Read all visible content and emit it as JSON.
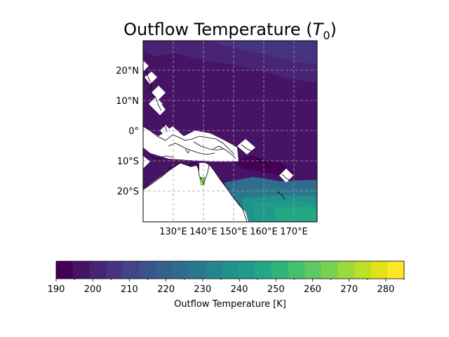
{
  "title": {
    "main": "Outflow Temperature (",
    "symbol": "T",
    "subscript": "0",
    "close": ")"
  },
  "map": {
    "lat_ticks": [
      "20°N",
      "10°N",
      "0°",
      "10°S",
      "20°S"
    ],
    "lon_ticks": [
      "130°E",
      "140°E",
      "150°E",
      "160°E",
      "170°E"
    ],
    "gridlines": true
  },
  "colorbar": {
    "label": "Outflow Temperature [K]",
    "ticks": [
      "190",
      "200",
      "210",
      "220",
      "230",
      "240",
      "250",
      "260",
      "270",
      "280"
    ],
    "colors": [
      "#440154",
      "#471365",
      "#482475",
      "#463480",
      "#414487",
      "#3b528b",
      "#355f8d",
      "#2f6c8e",
      "#2a788e",
      "#25848e",
      "#21918c",
      "#1e9c89",
      "#22a884",
      "#2fb47c",
      "#44bf70",
      "#5ec962",
      "#7ad151",
      "#9bd93c",
      "#bddf26",
      "#dfe318",
      "#fde725"
    ]
  },
  "chart_data": {
    "type": "heatmap",
    "title": "Outflow Temperature (T0)",
    "xlabel": "",
    "ylabel": "",
    "colorbar_label": "Outflow Temperature [K]",
    "color_range": [
      190,
      285
    ],
    "lon_range": [
      120,
      177
    ],
    "lat_range": [
      -30,
      30
    ],
    "dominant_value_tropics": 197,
    "north_pacific_value": 207,
    "southeast_value": 240
  }
}
